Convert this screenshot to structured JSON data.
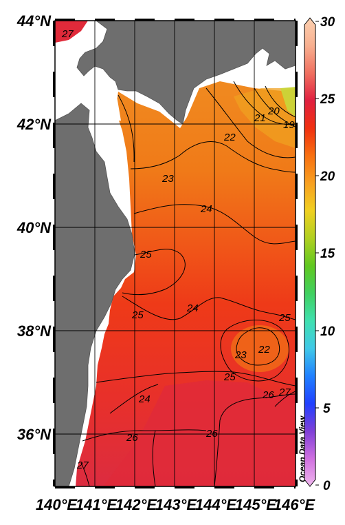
{
  "map": {
    "lon_labels": [
      "140°E",
      "141°E",
      "142°E",
      "143°E",
      "144°E",
      "145°E",
      "146°E"
    ],
    "lat_labels": [
      "44°N",
      "42°N",
      "40°N",
      "38°N",
      "36°N"
    ],
    "credit": "Ocean Data View"
  },
  "colorbar": {
    "ticks": [
      "30",
      "25",
      "20",
      "15",
      "10",
      "5",
      "0"
    ],
    "min": 0,
    "max": 30,
    "colors": [
      "#f0b8ee",
      "#d070e0",
      "#8040d8",
      "#2040ff",
      "#2080ff",
      "#40c8e8",
      "#40e0b0",
      "#40d060",
      "#60c820",
      "#b0d020",
      "#f0d020",
      "#f8a020",
      "#f87010",
      "#f03010",
      "#e02040",
      "#f07060",
      "#f8b090",
      "#fcd0b0"
    ]
  },
  "contours": [
    {
      "label": "27",
      "value": 27
    },
    {
      "label": "21",
      "value": 21
    },
    {
      "label": "20",
      "value": 20
    },
    {
      "label": "19",
      "value": 19
    },
    {
      "label": "22",
      "value": 22
    },
    {
      "label": "23",
      "value": 23
    },
    {
      "label": "24",
      "value": 24
    },
    {
      "label": "25",
      "value": 25
    },
    {
      "label": "25",
      "value": 25
    },
    {
      "label": "24",
      "value": 24
    },
    {
      "label": "25",
      "value": 25
    },
    {
      "label": "23",
      "value": 23
    },
    {
      "label": "22",
      "value": 22
    },
    {
      "label": "25",
      "value": 25
    },
    {
      "label": "26",
      "value": 26
    },
    {
      "label": "27",
      "value": 27
    },
    {
      "label": "24",
      "value": 24
    },
    {
      "label": "26",
      "value": 26
    },
    {
      "label": "26",
      "value": 26
    },
    {
      "label": "27",
      "value": 27
    }
  ]
}
